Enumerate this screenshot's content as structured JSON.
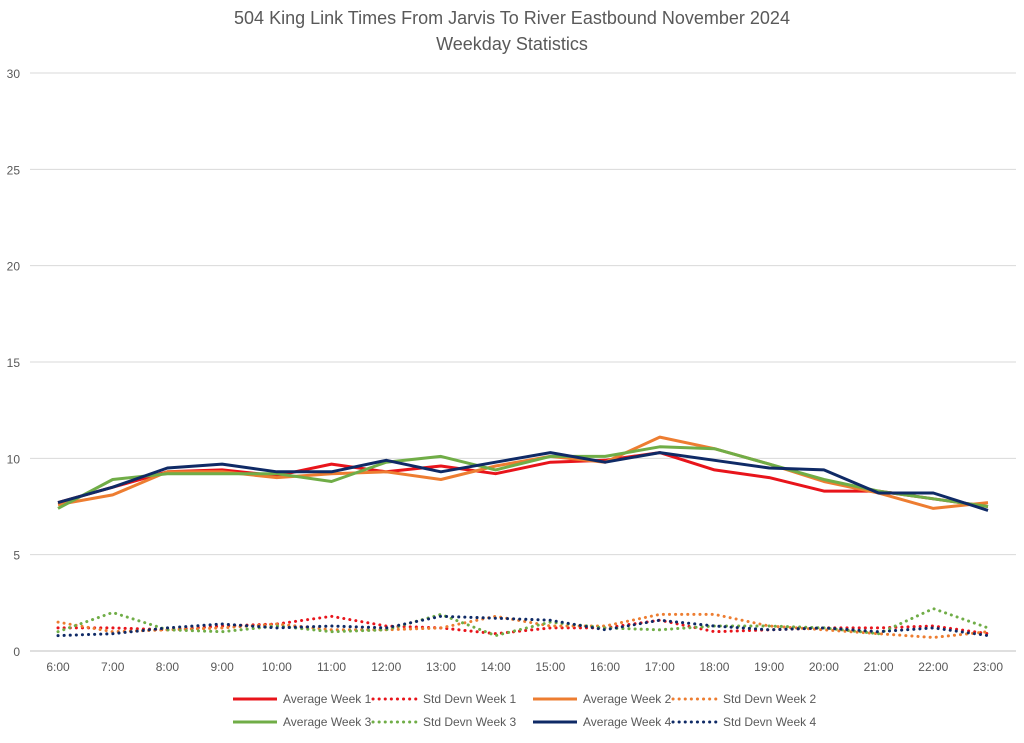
{
  "chart_data": {
    "type": "line",
    "title": "504 King Link Times From Jarvis To River Eastbound November 2024",
    "subtitle": "Weekday Statistics",
    "xlabel": "",
    "ylabel": "",
    "ylim": [
      0,
      30
    ],
    "yticks": [
      "0",
      "5",
      "10",
      "15",
      "20",
      "25",
      "30"
    ],
    "grid": true,
    "legend_position": "bottom",
    "categories": [
      "6:00",
      "7:00",
      "8:00",
      "9:00",
      "10:00",
      "11:00",
      "12:00",
      "13:00",
      "14:00",
      "15:00",
      "16:00",
      "17:00",
      "18:00",
      "19:00",
      "20:00",
      "21:00",
      "22:00",
      "23:00"
    ],
    "series": [
      {
        "name": "Average Week 1",
        "color": "#e8141b",
        "style": "solid",
        "values": [
          7.7,
          8.5,
          9.3,
          9.4,
          9.1,
          9.7,
          9.3,
          9.6,
          9.2,
          9.8,
          9.9,
          10.3,
          9.4,
          9.0,
          8.3,
          8.3,
          7.9,
          7.5
        ]
      },
      {
        "name": "Std Devn Week 1",
        "color": "#e8141b",
        "style": "dotted",
        "values": [
          1.2,
          1.2,
          1.1,
          1.3,
          1.4,
          1.8,
          1.3,
          1.2,
          0.9,
          1.2,
          1.2,
          1.6,
          1.0,
          1.1,
          1.2,
          1.2,
          1.3,
          0.9
        ]
      },
      {
        "name": "Average Week 2",
        "color": "#ed7d31",
        "style": "solid",
        "values": [
          7.6,
          8.1,
          9.3,
          9.3,
          9.0,
          9.2,
          9.3,
          8.9,
          9.6,
          10.1,
          9.8,
          11.1,
          10.5,
          9.7,
          8.8,
          8.2,
          7.4,
          7.7
        ]
      },
      {
        "name": "Std Devn Week 2",
        "color": "#ed7d31",
        "style": "dotted",
        "values": [
          1.5,
          1.0,
          1.1,
          1.2,
          1.4,
          1.1,
          1.1,
          1.2,
          1.8,
          1.3,
          1.3,
          1.9,
          1.9,
          1.3,
          1.1,
          0.9,
          0.7,
          1.0
        ]
      },
      {
        "name": "Average Week 3",
        "color": "#70ad47",
        "style": "solid",
        "values": [
          7.4,
          8.9,
          9.2,
          9.2,
          9.2,
          8.8,
          9.8,
          10.1,
          9.4,
          10.1,
          10.1,
          10.6,
          10.5,
          9.7,
          8.9,
          8.3,
          7.9,
          7.5
        ]
      },
      {
        "name": "Std Devn Week 3",
        "color": "#70ad47",
        "style": "dotted",
        "values": [
          1.0,
          2.0,
          1.1,
          1.0,
          1.3,
          1.0,
          1.1,
          1.9,
          0.8,
          1.5,
          1.2,
          1.1,
          1.3,
          1.3,
          1.2,
          0.9,
          2.2,
          1.2
        ]
      },
      {
        "name": "Average Week 4",
        "color": "#0f2a66",
        "style": "solid",
        "values": [
          7.7,
          8.5,
          9.5,
          9.7,
          9.3,
          9.3,
          9.9,
          9.3,
          9.8,
          10.3,
          9.8,
          10.3,
          9.9,
          9.5,
          9.4,
          8.2,
          8.2,
          7.3
        ]
      },
      {
        "name": "Std Devn Week 4",
        "color": "#0f2a66",
        "style": "dotted",
        "values": [
          0.8,
          0.9,
          1.2,
          1.4,
          1.2,
          1.3,
          1.2,
          1.8,
          1.7,
          1.6,
          1.1,
          1.6,
          1.3,
          1.1,
          1.2,
          1.0,
          1.2,
          0.8
        ]
      }
    ]
  }
}
